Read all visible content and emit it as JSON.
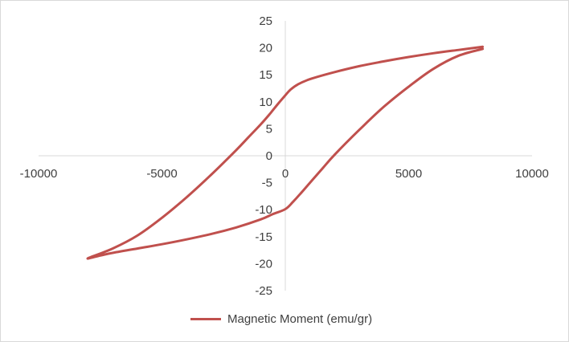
{
  "chart_data": {
    "type": "line",
    "title": "",
    "xlabel": "",
    "ylabel": "",
    "xlim": [
      -10000,
      10000
    ],
    "ylim": [
      -25,
      25
    ],
    "x_ticks": [
      "-10000",
      "-5000",
      "0",
      "5000",
      "10000"
    ],
    "y_ticks": [
      "25",
      "20",
      "15",
      "10",
      "5",
      "0",
      "-5",
      "-10",
      "-15",
      "-20",
      "-25"
    ],
    "grid": false,
    "legend_position": "bottom",
    "series": [
      {
        "name": "Magnetic Moment (emu/gr)",
        "color": "#c0504d",
        "x": [
          8000,
          7000,
          6000,
          5000,
          4000,
          3000,
          2000,
          1000,
          500,
          200,
          0,
          -300,
          -600,
          -1000,
          -1500,
          -2000,
          -3000,
          -4000,
          -5000,
          -6000,
          -7000,
          -8000,
          -7500,
          -7000,
          -6000,
          -5000,
          -4000,
          -3000,
          -2000,
          -1000,
          -500,
          0,
          300,
          600,
          1000,
          1500,
          2000,
          3000,
          4000,
          5000,
          6000,
          7000,
          8000
        ],
        "y": [
          20.2,
          19.6,
          19.0,
          18.3,
          17.5,
          16.6,
          15.5,
          14.2,
          13.2,
          12.2,
          11.2,
          9.6,
          7.9,
          5.8,
          3.4,
          1.0,
          -3.5,
          -7.7,
          -11.5,
          -14.8,
          -17.2,
          -19.0,
          -18.5,
          -18.0,
          -17.2,
          -16.4,
          -15.5,
          -14.5,
          -13.3,
          -11.8,
          -10.8,
          -9.9,
          -8.6,
          -7.1,
          -5.0,
          -2.4,
          0.2,
          4.8,
          9.1,
          12.8,
          16.1,
          18.5,
          19.8
        ]
      }
    ]
  }
}
